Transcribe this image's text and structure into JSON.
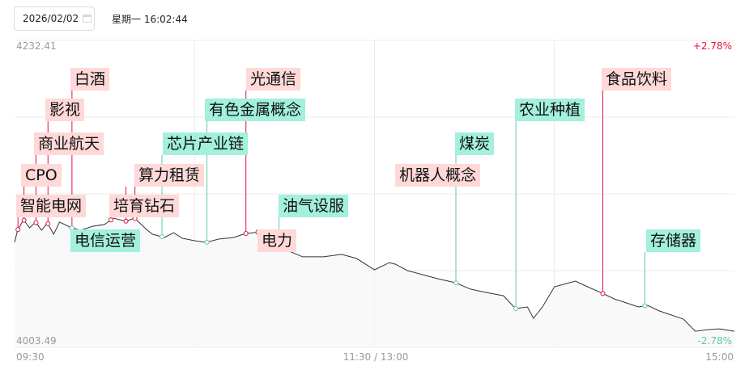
{
  "header": {
    "date": "2026/02/02",
    "calendar_icon": "calendar-icon",
    "datetime": "星期一 16:02:44"
  },
  "chart_data": {
    "type": "line",
    "title": "",
    "ylim": [
      4003.49,
      4232.41
    ],
    "y_top_label": "4232.41",
    "y_bottom_label": "4003.49",
    "pct_top_label": "+2.78%",
    "pct_bottom_label": "-2.78%",
    "x_tick_labels": [
      "09:30",
      "11:30 / 13:00",
      "15:00"
    ],
    "grid": true,
    "colors": {
      "line": "#333340",
      "up": "#e0153a",
      "down": "#5fc9a9",
      "up_bg": "#ffd8d8",
      "down_bg": "#a3f0dc"
    },
    "series": [
      {
        "x": [
          "09:30",
          "09:31",
          "09:33",
          "09:35",
          "09:37",
          "09:39",
          "09:41",
          "09:43",
          "09:45",
          "09:49",
          "09:52",
          "09:56",
          "10:00",
          "10:03",
          "10:07",
          "10:10",
          "10:14",
          "10:16",
          "10:20",
          "10:23",
          "10:26",
          "10:30",
          "10:34",
          "10:38",
          "10:43",
          "10:47",
          "10:52",
          "10:57",
          "11:01",
          "11:06",
          "11:13",
          "11:19",
          "11:24",
          "11:30",
          "13:05",
          "13:07",
          "13:11",
          "13:16",
          "13:21",
          "13:27",
          "13:32",
          "13:37",
          "13:43",
          "13:47",
          "13:51",
          "13:53",
          "13:56",
          "14:00",
          "14:03",
          "14:07",
          "14:11",
          "14:16",
          "14:20",
          "14:24",
          "14:28",
          "14:31",
          "14:35",
          "14:39",
          "14:43",
          "14:47",
          "14:51",
          "14:55",
          "15:00"
        ],
        "y": [
          4081.8,
          4090.8,
          4098.7,
          4092.6,
          4096.9,
          4090.8,
          4096.3,
          4087.8,
          4096.9,
          4092.6,
          4090.8,
          4093.8,
          4095.1,
          4099.9,
          4097.5,
          4099.9,
          4091.4,
          4087.8,
          4085.4,
          4089.0,
          4084.8,
          4083.0,
          4081.8,
          4084.2,
          4085.4,
          4088.4,
          4089.6,
          4081.8,
          4075.8,
          4071.0,
          4071.0,
          4072.8,
          4069.8,
          4061.3,
          4066.7,
          4065.5,
          4060.7,
          4057.7,
          4054.7,
          4051.7,
          4046.9,
          4044.5,
          4042.0,
          4032.4,
          4033.6,
          4025.2,
          4033.6,
          4048.7,
          4050.5,
          4052.9,
          4048.7,
          4043.8,
          4039.6,
          4036.6,
          4033.6,
          4034.8,
          4030.6,
          4027.6,
          4024.6,
          4015.5,
          4016.7,
          4017.3,
          4015.5
        ]
      }
    ],
    "annotations": [
      {
        "label": "智能电网",
        "time": "09:31",
        "trend": "up"
      },
      {
        "label": "CPO",
        "time": "09:33",
        "trend": "up"
      },
      {
        "label": "商业航天",
        "time": "09:37",
        "trend": "up"
      },
      {
        "label": "影视",
        "time": "09:41",
        "trend": "up"
      },
      {
        "label": "白酒",
        "time": "09:49",
        "trend": "up"
      },
      {
        "label": "电信运营",
        "time": "09:49",
        "trend": "down"
      },
      {
        "label": "培育钻石",
        "time": "10:02",
        "trend": "up"
      },
      {
        "label": "算力租赁",
        "time": "10:10",
        "trend": "up"
      },
      {
        "label": "芯片产业链",
        "time": "10:19",
        "trend": "down"
      },
      {
        "label": "有色金属概念",
        "time": "10:34",
        "trend": "down"
      },
      {
        "label": "光通信",
        "time": "10:47",
        "trend": "up"
      },
      {
        "label": "电力",
        "time": "10:51",
        "trend": "up"
      },
      {
        "label": "油气设服",
        "time": "10:58",
        "trend": "down"
      },
      {
        "label": "机器人概念",
        "time": "11:37",
        "trend": "up"
      },
      {
        "label": "煤炭",
        "time": "13:27",
        "trend": "down"
      },
      {
        "label": "农业种植",
        "time": "13:47",
        "trend": "down"
      },
      {
        "label": "食品饮料",
        "time": "14:16",
        "trend": "up"
      },
      {
        "label": "存储器",
        "time": "14:30",
        "trend": "down"
      }
    ]
  }
}
